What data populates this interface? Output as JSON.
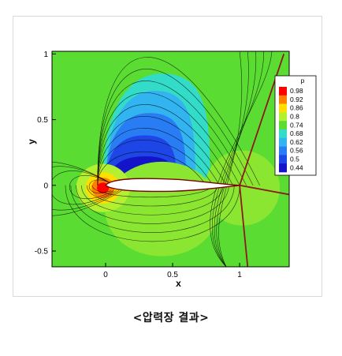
{
  "caption": "<압력장 결과>",
  "chart_data": {
    "type": "heatmap",
    "title": "",
    "xlabel": "x",
    "ylabel": "y",
    "xlim": [
      -0.4,
      1.37
    ],
    "ylim": [
      -0.62,
      1.02
    ],
    "x_ticks": [
      "0",
      "0.5",
      "1"
    ],
    "y_ticks": [
      "-0.5",
      "0",
      "0.5",
      "1"
    ],
    "legend": {
      "title": "p",
      "placement": "top-right",
      "levels": [
        0.98,
        0.92,
        0.86,
        0.8,
        0.74,
        0.68,
        0.62,
        0.56,
        0.5,
        0.44
      ],
      "colors": [
        "#ff0000",
        "#ff7f00",
        "#ffdf00",
        "#b4f032",
        "#5adc32",
        "#32dcc8",
        "#32b4f0",
        "#287df5",
        "#1e46e6",
        "#1414c8"
      ]
    },
    "airfoil": {
      "leading_edge_x": 0,
      "trailing_edge_x": 1
    },
    "shock_lines": [
      {
        "from": [
          1.0,
          0.0
        ],
        "to": [
          1.33,
          1.0
        ]
      },
      {
        "from": [
          1.0,
          0.0
        ],
        "to": [
          1.06,
          -0.62
        ]
      },
      {
        "from": [
          1.0,
          0.0
        ],
        "to": [
          1.37,
          -0.07
        ]
      }
    ]
  }
}
